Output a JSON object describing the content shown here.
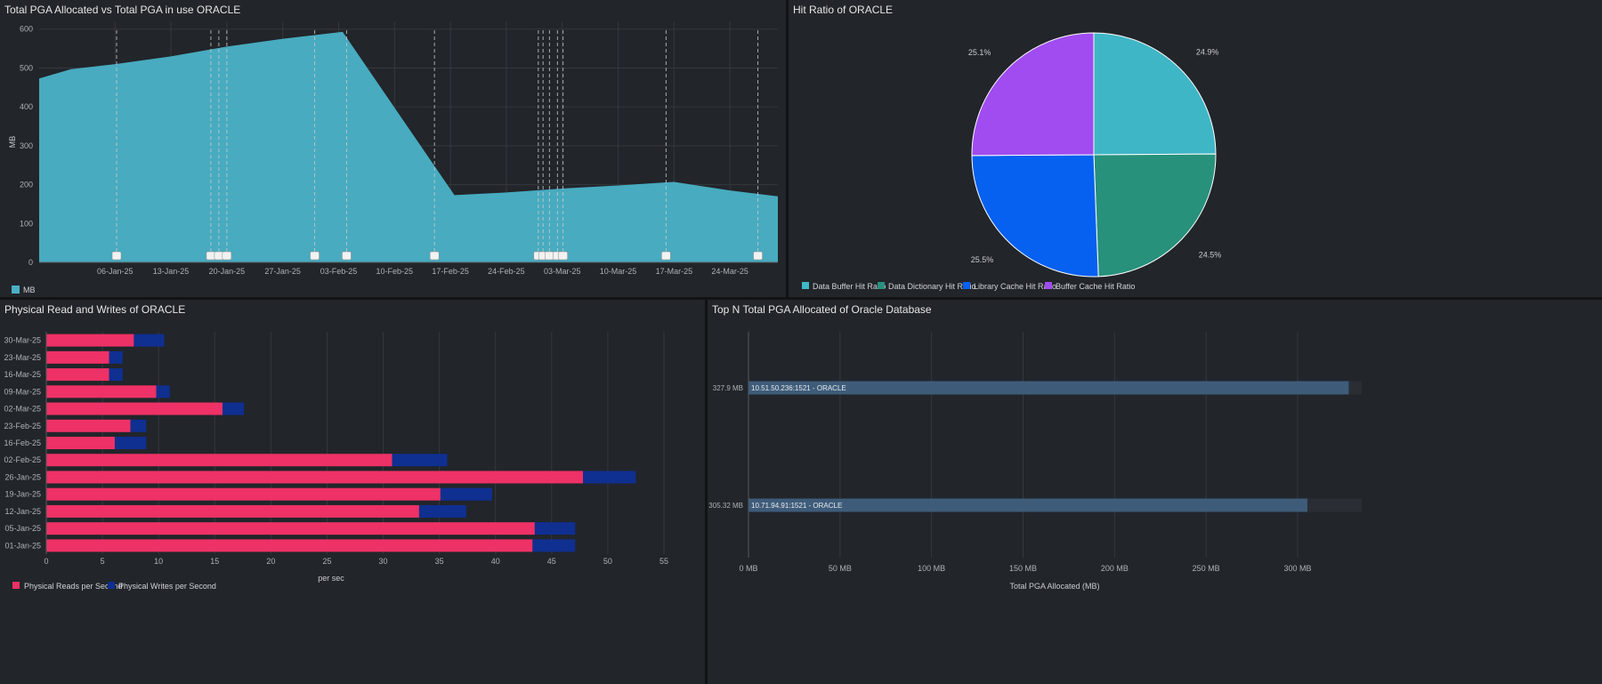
{
  "colors": {
    "area": "#49b0c4",
    "reads": "#ee3166",
    "writes": "#0f2f91",
    "hbar": "#3e5c7a",
    "pie": [
      "#3fb6c6",
      "#27917c",
      "#0660f0",
      "#a04cf0"
    ]
  },
  "chart_data": [
    {
      "id": "pga-area",
      "type": "area",
      "title": "Total PGA Allocated vs Total PGA in use ORACLE",
      "ylabel": "MB",
      "xlabel": "",
      "ylim": [
        0,
        620
      ],
      "yticks": [
        0,
        100,
        200,
        300,
        400,
        500,
        600
      ],
      "xlim": [
        -4.5,
        88
      ],
      "xtick_labels": [
        "06-Jan-25",
        "13-Jan-25",
        "20-Jan-25",
        "27-Jan-25",
        "03-Feb-25",
        "10-Feb-25",
        "17-Feb-25",
        "24-Feb-25",
        "03-Mar-25",
        "10-Mar-25",
        "17-Mar-25",
        "24-Mar-25"
      ],
      "xtick_days": [
        5,
        12,
        19,
        26,
        33,
        40,
        47,
        54,
        61,
        68,
        75,
        82
      ],
      "series": [
        {
          "name": "MB",
          "x": [
            -4.5,
            -0.5,
            5,
            12,
            19,
            26,
            33.5,
            47.5,
            54,
            61,
            68,
            75,
            82,
            88
          ],
          "values": [
            473,
            497,
            510,
            530,
            555,
            575,
            593,
            173,
            180,
            190,
            198,
            207,
            185,
            170
          ]
        }
      ],
      "annotation_days": [
        5.2,
        17,
        18,
        19,
        30,
        34,
        45,
        58,
        58.6,
        59.4,
        60.4,
        61.1,
        74,
        85.5
      ],
      "grid": true,
      "legend": "bottom-left"
    },
    {
      "id": "hit-ratio-pie",
      "type": "pie",
      "title": "Hit Ratio of ORACLE",
      "labels": [
        "Data Buffer Hit Ratio",
        "Data Dictionary Hit Ratio",
        "Library Cache Hit Ratio",
        "Buffer Cache Hit Ratio"
      ],
      "values": [
        24.9,
        24.5,
        25.5,
        25.1
      ],
      "value_labels": [
        "24.9%",
        "24.5%",
        "25.5%",
        "25.1%"
      ],
      "legend": "bottom"
    },
    {
      "id": "physical-rw",
      "type": "bar",
      "orientation": "horizontal",
      "stacked": true,
      "title": "Physical Read and Writes of ORACLE",
      "xlabel": "per sec",
      "ylabel": "",
      "xlim": [
        0,
        55
      ],
      "xticks": [
        0,
        5,
        10,
        15,
        20,
        25,
        30,
        35,
        40,
        45,
        50,
        55
      ],
      "categories": [
        "30-Mar-25",
        "23-Mar-25",
        "16-Mar-25",
        "09-Mar-25",
        "02-Mar-25",
        "23-Feb-25",
        "16-Feb-25",
        "02-Feb-25",
        "26-Jan-25",
        "19-Jan-25",
        "12-Jan-25",
        "05-Jan-25",
        "01-Jan-25"
      ],
      "series": [
        {
          "name": "Physical Reads per Second",
          "values": [
            7.8,
            5.6,
            5.6,
            9.8,
            15.7,
            7.5,
            6.1,
            30.8,
            47.8,
            35.1,
            33.2,
            43.5,
            43.3
          ]
        },
        {
          "name": "Physical Writes per Second",
          "values": [
            2.7,
            1.2,
            1.2,
            1.2,
            1.9,
            1.4,
            2.8,
            4.9,
            4.7,
            4.6,
            4.2,
            3.6,
            3.8
          ]
        }
      ],
      "grid": true,
      "legend": "bottom-left"
    },
    {
      "id": "topn-pga",
      "type": "bar",
      "orientation": "horizontal",
      "title": "Top N Total PGA Allocated of Oracle Database",
      "xlabel": "Total PGA Allocated (MB)",
      "ylabel": "",
      "xlim": [
        0,
        335
      ],
      "xticks": [
        0,
        50,
        100,
        150,
        200,
        250,
        300
      ],
      "xtick_labels": [
        "0 MB",
        "50 MB",
        "100 MB",
        "150 MB",
        "200 MB",
        "250 MB",
        "300 MB"
      ],
      "categories": [
        "10.51.50.236:1521 - ORACLE",
        "10.71.94.91:1521 - ORACLE"
      ],
      "values": [
        327.9,
        305.32
      ],
      "value_labels": [
        "327.9 MB",
        "305.32 MB"
      ],
      "grid": true
    }
  ]
}
